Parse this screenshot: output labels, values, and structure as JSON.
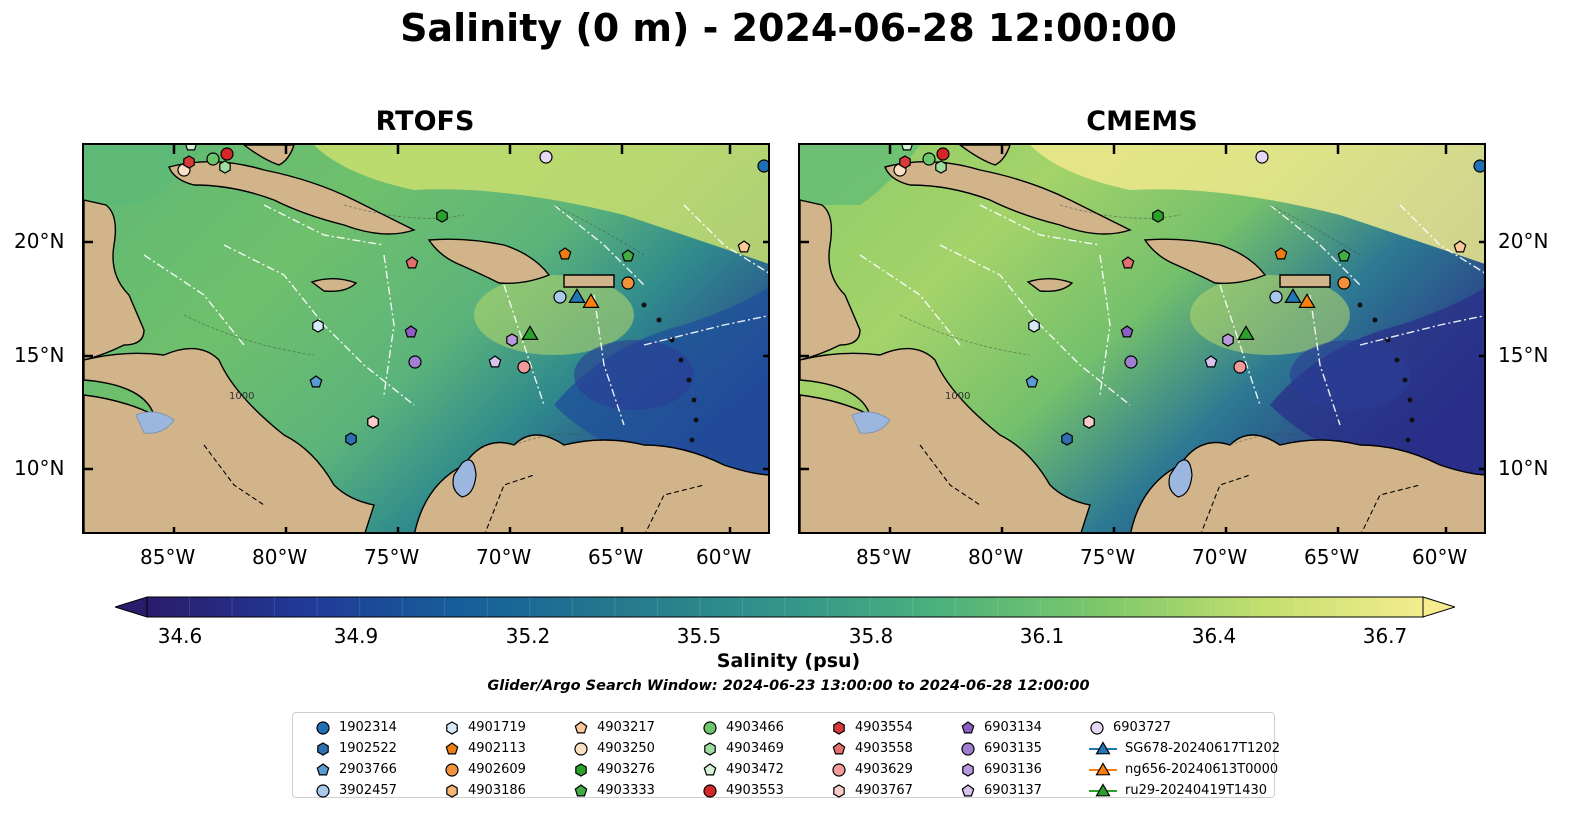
{
  "figure": {
    "title": "Salinity (0 m) - 2024-06-28 12:00:00",
    "panels": [
      {
        "id": "rtofs",
        "title": "RTOFS"
      },
      {
        "id": "cmems",
        "title": "CMEMS"
      }
    ],
    "longitude_ticks": [
      "85°W",
      "80°W",
      "75°W",
      "70°W",
      "65°W",
      "60°W"
    ],
    "latitude_ticks": [
      "20°N",
      "15°N",
      "10°N"
    ],
    "bathymetry_contour_label": "1000"
  },
  "colorbar": {
    "label": "Salinity (psu)",
    "ticks": [
      "34.6",
      "34.9",
      "35.2",
      "35.5",
      "35.8",
      "36.1",
      "36.4",
      "36.7"
    ],
    "min": 34.6,
    "max": 36.7,
    "extend": "both",
    "colormap": [
      "#2b1b6b",
      "#213a97",
      "#15609a",
      "#257a8c",
      "#33958a",
      "#4db27c",
      "#7ec86a",
      "#c3df6e",
      "#f4ec8e"
    ]
  },
  "search_window": "Glider/Argo Search Window: 2024-06-23 13:00:00 to 2024-06-28 12:00:00",
  "land_color": "#d1b48a",
  "lake_color": "#9bb7e0",
  "legend": {
    "columns": [
      [
        {
          "label": "1902314",
          "marker": "circle",
          "color": "#1f6fb4"
        },
        {
          "label": "1902522",
          "marker": "hexagon",
          "color": "#2e6fb0"
        },
        {
          "label": "2903766",
          "marker": "pentagon",
          "color": "#5b9bd5"
        },
        {
          "label": "3902457",
          "marker": "circle",
          "color": "#a8c9ea"
        }
      ],
      [
        {
          "label": "4901719",
          "marker": "hexagon",
          "color": "#d6e9f8"
        },
        {
          "label": "4902113",
          "marker": "pentagon",
          "color": "#f07d13"
        },
        {
          "label": "4902609",
          "marker": "circle",
          "color": "#f2913b"
        },
        {
          "label": "4903186",
          "marker": "hexagon",
          "color": "#f7b472"
        }
      ],
      [
        {
          "label": "4903217",
          "marker": "pentagon",
          "color": "#f9c99a"
        },
        {
          "label": "4903250",
          "marker": "circle",
          "color": "#fce0c4"
        },
        {
          "label": "4903276",
          "marker": "hexagon",
          "color": "#2ca02c"
        },
        {
          "label": "4903333",
          "marker": "pentagon",
          "color": "#43ad43"
        }
      ],
      [
        {
          "label": "4903466",
          "marker": "circle",
          "color": "#6cc66c"
        },
        {
          "label": "4903469",
          "marker": "hexagon",
          "color": "#9fdc9f"
        },
        {
          "label": "4903472",
          "marker": "pentagon",
          "color": "#d2f4d2"
        },
        {
          "label": "4903553",
          "marker": "circle",
          "color": "#d62728"
        }
      ],
      [
        {
          "label": "4903554",
          "marker": "hexagon",
          "color": "#d8393b"
        },
        {
          "label": "4903558",
          "marker": "pentagon",
          "color": "#e36f6f"
        },
        {
          "label": "4903629",
          "marker": "circle",
          "color": "#f09a9a"
        },
        {
          "label": "4903767",
          "marker": "hexagon",
          "color": "#f9cbcb"
        }
      ],
      [
        {
          "label": "6903134",
          "marker": "pentagon",
          "color": "#8e5fc2"
        },
        {
          "label": "6903135",
          "marker": "circle",
          "color": "#a07fd0"
        },
        {
          "label": "6903136",
          "marker": "hexagon",
          "color": "#b899dd"
        },
        {
          "label": "6903137",
          "marker": "pentagon",
          "color": "#d6c3ee"
        }
      ],
      [
        {
          "label": "6903727",
          "marker": "circle",
          "color": "#e7d7f6"
        },
        {
          "label": "SG678-20240617T1202",
          "marker": "triangle-line",
          "color": "#1f77b4"
        },
        {
          "label": "ng656-20240613T0000",
          "marker": "triangle-line",
          "color": "#ff7f0e"
        },
        {
          "label": "ru29-20240419T1430",
          "marker": "triangle-line",
          "color": "#2ca02c"
        }
      ]
    ]
  }
}
